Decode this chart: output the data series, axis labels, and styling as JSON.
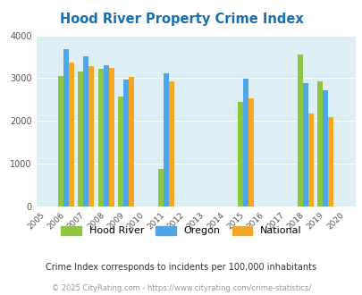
{
  "title": "Hood River Property Crime Index",
  "title_color": "#1a6faf",
  "subtitle": "Crime Index corresponds to incidents per 100,000 inhabitants",
  "footer": "© 2025 CityRating.com - https://www.cityrating.com/crime-statistics/",
  "years": [
    2006,
    2007,
    2008,
    2009,
    2011,
    2015,
    2018,
    2019
  ],
  "all_years": [
    2005,
    2006,
    2007,
    2008,
    2009,
    2010,
    2011,
    2012,
    2013,
    2014,
    2015,
    2016,
    2017,
    2018,
    2019,
    2020
  ],
  "hood_river": [
    3060,
    3160,
    3220,
    2580,
    880,
    2450,
    3560,
    2920
  ],
  "oregon": [
    3670,
    3510,
    3310,
    2970,
    3110,
    2980,
    2890,
    2720
  ],
  "national": [
    3360,
    3290,
    3230,
    3040,
    2920,
    2520,
    2170,
    2090
  ],
  "color_hood_river": "#8dc63f",
  "color_oregon": "#4da6e8",
  "color_national": "#f5a623",
  "ylim": [
    0,
    4000
  ],
  "yticks": [
    0,
    1000,
    2000,
    3000,
    4000
  ],
  "background_color": "#ddeef5",
  "bar_width": 0.27,
  "legend_labels": [
    "Hood River",
    "Oregon",
    "National"
  ]
}
